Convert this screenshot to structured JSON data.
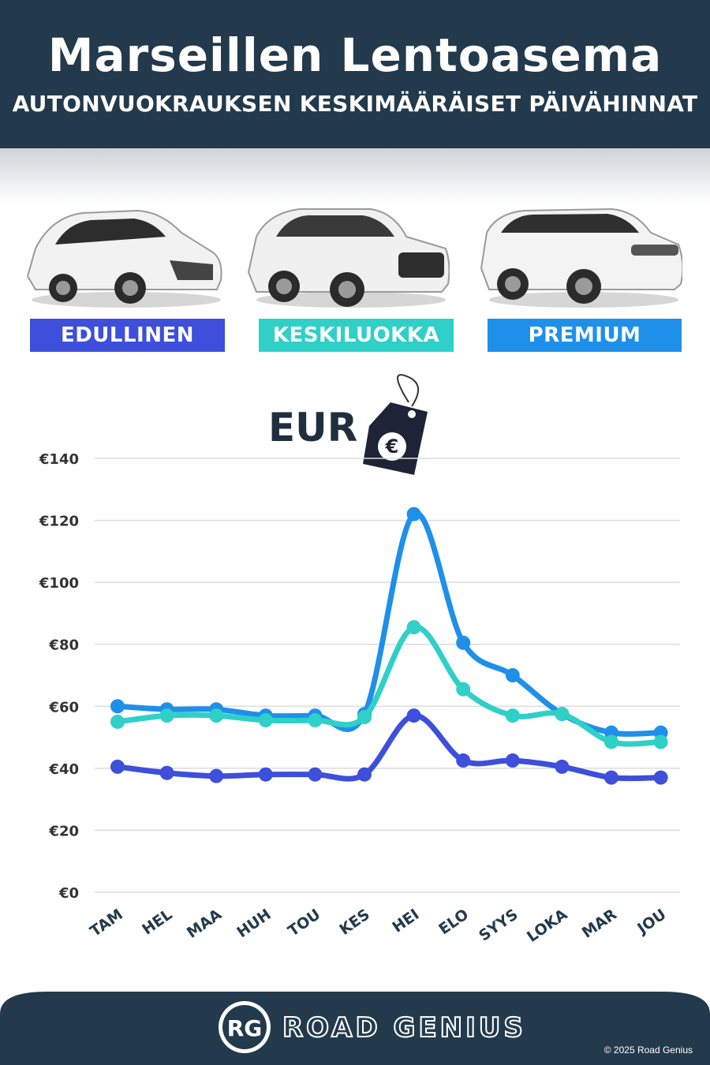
{
  "header": {
    "title": "Marseillen Lentoasema",
    "subtitle": "AUTONVUOKRAUKSEN KESKIMÄÄRÄISET PÄIVÄHINNAT"
  },
  "categories_badges": [
    {
      "label": "EDULLINEN",
      "color": "#3d4fdb"
    },
    {
      "label": "KESKILUOKKA",
      "color": "#2fd0c8"
    },
    {
      "label": "PREMIUM",
      "color": "#1e90ea"
    }
  ],
  "currency_label": "EUR",
  "currency_icon": "euro-price-tag-icon",
  "chart_data": {
    "type": "line",
    "categories": [
      "TAM",
      "HEL",
      "MAA",
      "HUH",
      "TOU",
      "KES",
      "HEI",
      "ELO",
      "SYYS",
      "LOKA",
      "MAR",
      "JOU"
    ],
    "series": [
      {
        "name": "EDULLINEN",
        "color": "#3d4fdb",
        "values": [
          40.5,
          38.5,
          37.5,
          38,
          38,
          38,
          57,
          42.5,
          42.5,
          40.5,
          37,
          37
        ]
      },
      {
        "name": "KESKILUOKKA",
        "color": "#2fd0c8",
        "values": [
          55,
          57,
          57,
          55.5,
          55.5,
          56.5,
          85.5,
          65.5,
          57,
          57.5,
          48.5,
          48.5
        ]
      },
      {
        "name": "PREMIUM",
        "color": "#1e90ea",
        "values": [
          60,
          59,
          59,
          57,
          57,
          57.5,
          122,
          80.5,
          70,
          57.5,
          51.5,
          51.5
        ]
      }
    ],
    "ylim": [
      0,
      140
    ],
    "yticks": [
      0,
      20,
      40,
      60,
      80,
      100,
      120,
      140
    ],
    "ytick_labels": [
      "€0",
      "€20",
      "€40",
      "€60",
      "€80",
      "€100",
      "€120",
      "€140"
    ],
    "grid": true
  },
  "footer": {
    "logo_initials": "RG",
    "brand": "ROAD GENIUS",
    "copyright": "© 2025 Road Genius",
    "background": "#233a4d"
  }
}
